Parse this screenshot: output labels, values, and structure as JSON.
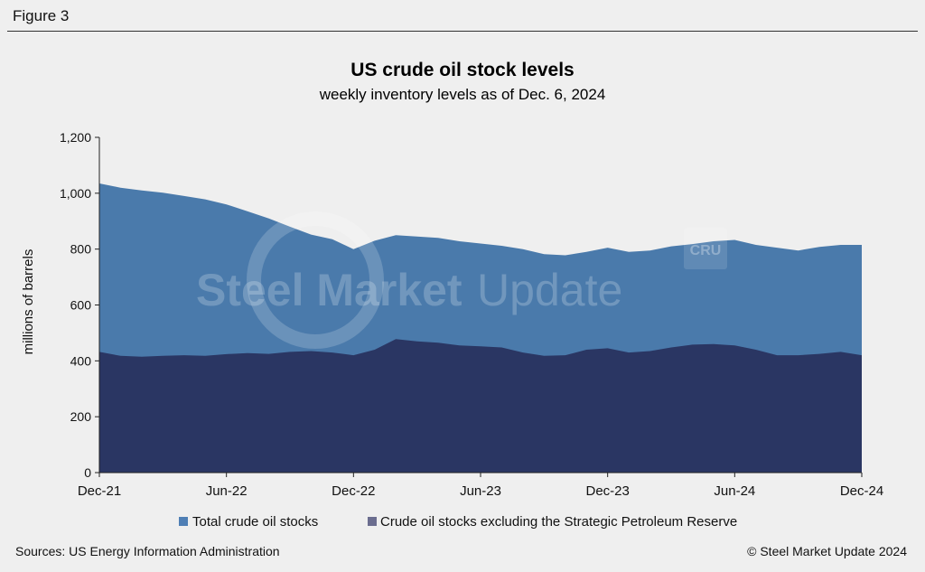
{
  "figure_label": "Figure 3",
  "watermark": {
    "brand_bold": "Steel Market",
    "brand_light": "Update",
    "badge": "CRU"
  },
  "footer": {
    "sources": "Sources: US Energy Information Administration",
    "copyright": "© Steel Market Update 2024"
  },
  "colors": {
    "total": "#4a7aab",
    "excl_spr": "#2a3663",
    "legend_total": "#4f7fb5",
    "legend_excl": "#6b6d8f"
  },
  "chart_data": {
    "type": "area",
    "title": "US crude oil stock levels",
    "subtitle": "weekly inventory levels as of Dec. 6, 2024",
    "ylabel": "millions of barrels",
    "xlabel": "",
    "ylim": [
      0,
      1200
    ],
    "yticks": [
      0,
      200,
      400,
      600,
      800,
      1000,
      1200
    ],
    "ytick_labels": [
      "0",
      "200",
      "400",
      "600",
      "800",
      "1,000",
      "1,200"
    ],
    "xticks": [
      "Dec-21",
      "Jun-22",
      "Dec-22",
      "Jun-23",
      "Dec-23",
      "Jun-24",
      "Dec-24"
    ],
    "xlim": [
      "2021-12",
      "2024-12"
    ],
    "grid": false,
    "legend_position": "bottom",
    "x": [
      "2021-12",
      "2022-01",
      "2022-02",
      "2022-03",
      "2022-04",
      "2022-05",
      "2022-06",
      "2022-07",
      "2022-08",
      "2022-09",
      "2022-10",
      "2022-11",
      "2022-12",
      "2023-01",
      "2023-02",
      "2023-03",
      "2023-04",
      "2023-05",
      "2023-06",
      "2023-07",
      "2023-08",
      "2023-09",
      "2023-10",
      "2023-11",
      "2023-12",
      "2024-01",
      "2024-02",
      "2024-03",
      "2024-04",
      "2024-05",
      "2024-06",
      "2024-07",
      "2024-08",
      "2024-09",
      "2024-10",
      "2024-11",
      "2024-12"
    ],
    "series": [
      {
        "name": "Total crude oil stocks",
        "values": [
          1035,
          1020,
          1010,
          1002,
          990,
          978,
          960,
          935,
          910,
          880,
          852,
          835,
          800,
          830,
          850,
          845,
          840,
          828,
          820,
          812,
          800,
          782,
          778,
          790,
          805,
          790,
          795,
          810,
          818,
          828,
          833,
          815,
          805,
          795,
          808,
          815,
          815
        ]
      },
      {
        "name": "Crude oil stocks excluding the Strategic Petroleum Reserve",
        "values": [
          432,
          418,
          415,
          418,
          420,
          418,
          424,
          428,
          425,
          432,
          435,
          430,
          420,
          440,
          478,
          470,
          465,
          455,
          452,
          448,
          430,
          418,
          420,
          440,
          445,
          430,
          435,
          448,
          458,
          460,
          455,
          440,
          420,
          420,
          425,
          432,
          420
        ]
      }
    ]
  }
}
